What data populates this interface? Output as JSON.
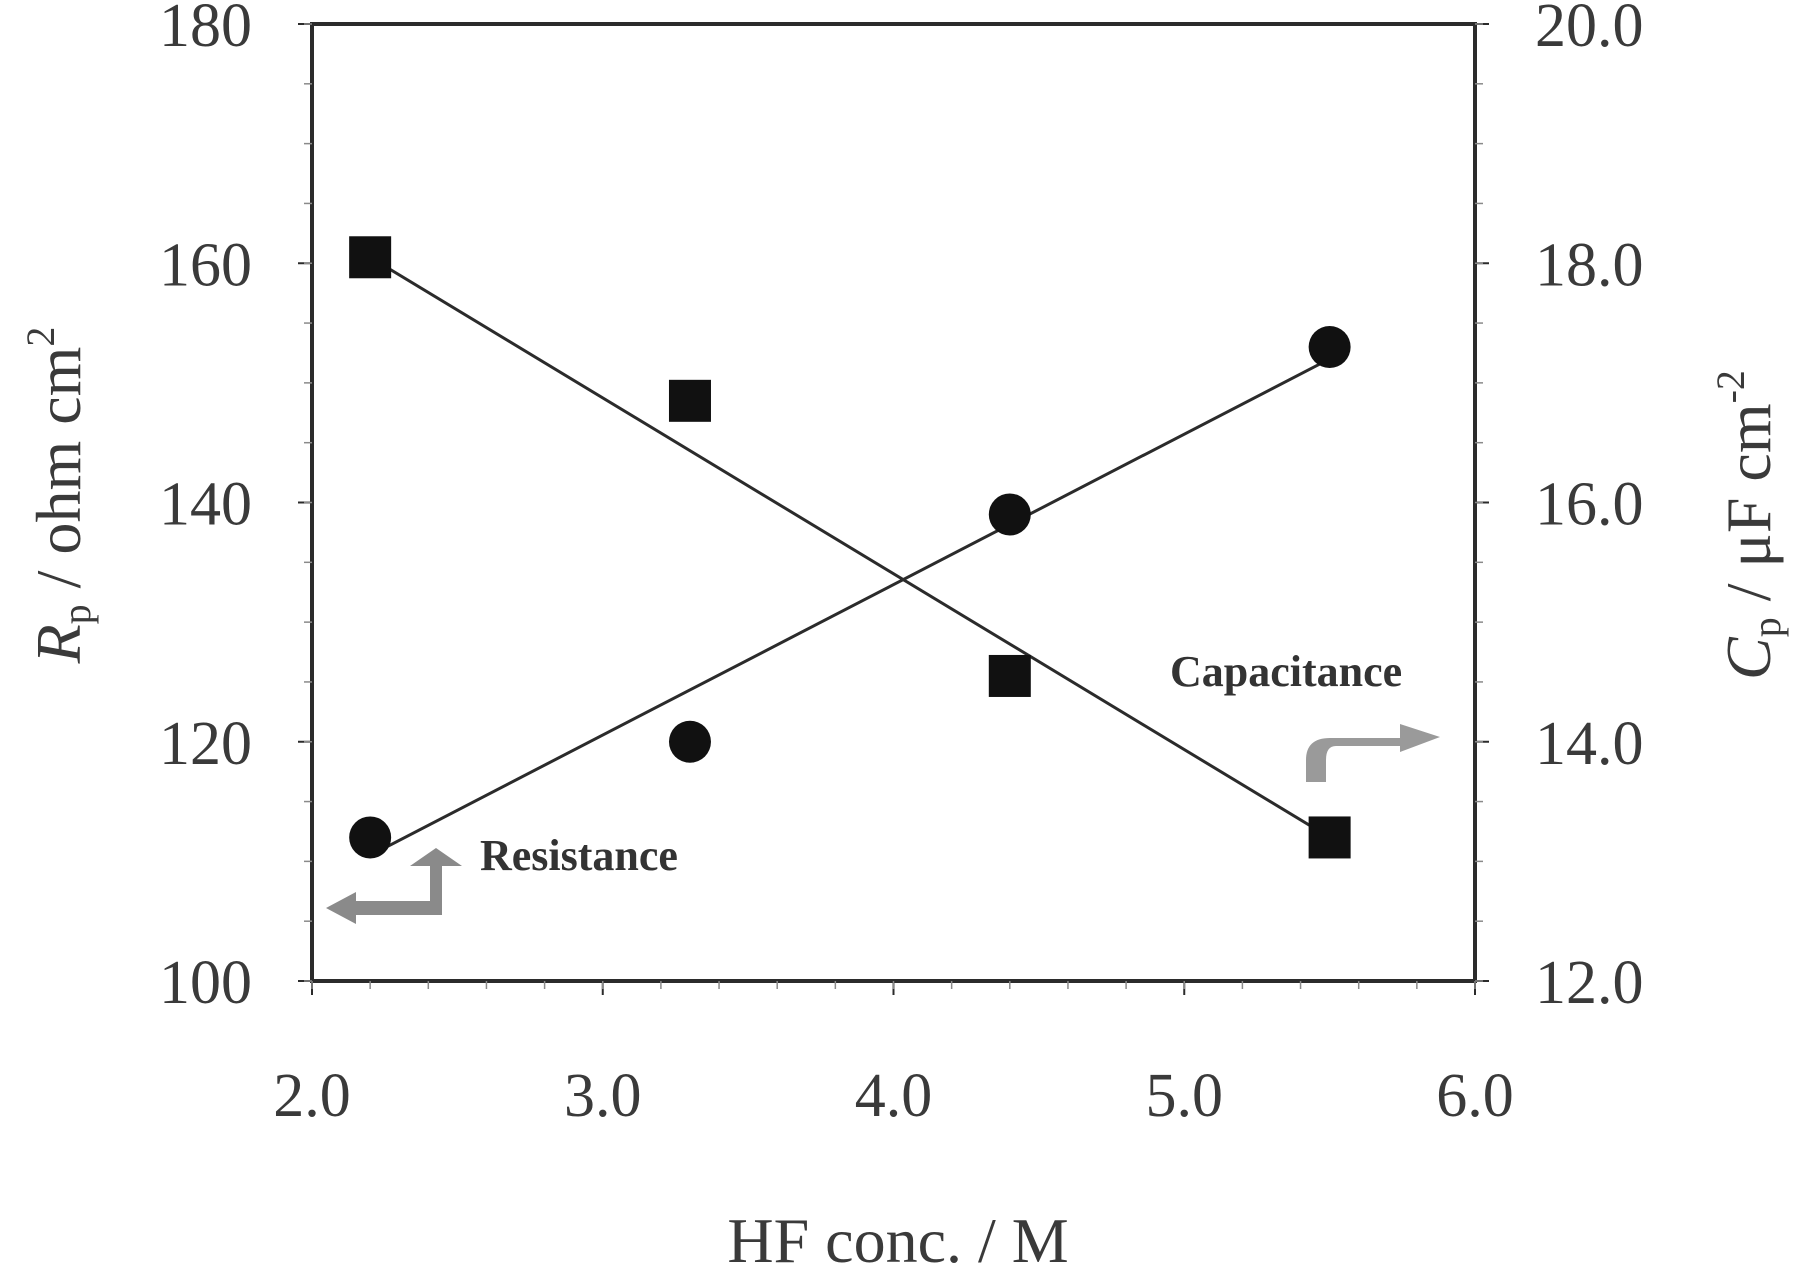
{
  "chart_data": {
    "type": "scatter",
    "x_axis": {
      "label": "HF conc. / M",
      "range": [
        2.0,
        6.0
      ],
      "ticks": [
        "2.0",
        "3.0",
        "4.0",
        "5.0",
        "6.0"
      ],
      "tick_values": [
        2.0,
        3.0,
        4.0,
        5.0,
        6.0
      ]
    },
    "y_axis_left": {
      "label_var": "R",
      "label_sub": "p",
      "label_rest": " / ohm cm",
      "label_sup": "2",
      "range": [
        100,
        180
      ],
      "ticks": [
        "100",
        "120",
        "140",
        "160",
        "180"
      ],
      "tick_values": [
        100,
        120,
        140,
        160,
        180
      ]
    },
    "y_axis_right": {
      "label_var": "C",
      "label_sub": "p",
      "label_rest": " / μF cm",
      "label_sup": "-2",
      "range": [
        12.0,
        20.0
      ],
      "ticks": [
        "12.0",
        "14.0",
        "16.0",
        "18.0",
        "20.0"
      ],
      "tick_values": [
        12.0,
        14.0,
        16.0,
        18.0,
        20.0
      ]
    },
    "series": [
      {
        "marker": "square",
        "axis": "left",
        "points": [
          {
            "x": 2.2,
            "y": 160.5
          },
          {
            "x": 3.3,
            "y": 148.5
          },
          {
            "x": 4.4,
            "y": 125.5
          },
          {
            "x": 5.5,
            "y": 112.0
          }
        ],
        "fit_line": [
          [
            2.2,
            160.5
          ],
          [
            5.5,
            112.0
          ]
        ]
      },
      {
        "marker": "circle",
        "axis": "right",
        "points": [
          {
            "x": 2.2,
            "y": 13.2
          },
          {
            "x": 3.3,
            "y": 14.0
          },
          {
            "x": 4.4,
            "y": 15.9
          },
          {
            "x": 5.5,
            "y": 17.3
          }
        ],
        "fit_line": [
          [
            2.2,
            13.05
          ],
          [
            5.5,
            17.2
          ]
        ]
      }
    ],
    "annotations": [
      {
        "text": "Resistance",
        "arrow": "left"
      },
      {
        "text": "Capacitance",
        "arrow": "right"
      }
    ],
    "grid": false
  }
}
